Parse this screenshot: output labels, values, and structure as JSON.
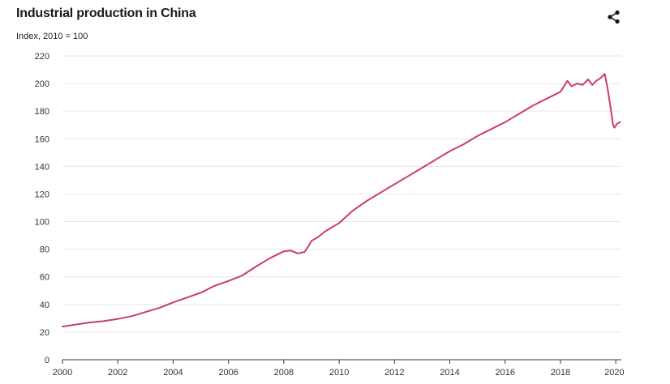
{
  "header": {
    "title": "Industrial production in China",
    "subtitle": "Index, 2010 = 100",
    "share_icon": "share-icon"
  },
  "colors": {
    "line": "#cc3d64",
    "grid": "#e6e6e6",
    "axis": "#333333"
  },
  "chart_data": {
    "type": "line",
    "title": "Industrial production in China",
    "subtitle": "Index, 2010 = 100",
    "xlabel": "",
    "ylabel": "",
    "xlim": [
      2000,
      2020.2
    ],
    "ylim": [
      0,
      220
    ],
    "grid": true,
    "x_ticks": [
      "2000",
      "2002",
      "2004",
      "2006",
      "2008",
      "2010",
      "2012",
      "2014",
      "2016",
      "2018",
      "2020"
    ],
    "y_ticks": [
      "0",
      "20",
      "40",
      "60",
      "80",
      "100",
      "120",
      "140",
      "160",
      "180",
      "200",
      "220"
    ],
    "series": [
      {
        "name": "",
        "x": [
          2000,
          2000.5,
          2001,
          2001.5,
          2002,
          2002.5,
          2003,
          2003.5,
          2004,
          2004.5,
          2005,
          2005.5,
          2006,
          2006.5,
          2007,
          2007.5,
          2008,
          2008.25,
          2008.5,
          2008.75,
          2008.9,
          2009,
          2009.25,
          2009.5,
          2010,
          2010.5,
          2011,
          2011.5,
          2012,
          2012.5,
          2013,
          2013.5,
          2014,
          2014.5,
          2015,
          2015.5,
          2016,
          2016.5,
          2017,
          2017.5,
          2018,
          2018.25,
          2018.4,
          2018.6,
          2018.8,
          2019,
          2019.15,
          2019.3,
          2019.45,
          2019.6,
          2019.7,
          2019.8,
          2019.9,
          2019.95,
          2020.05,
          2020.15
        ],
        "values": [
          24,
          25.5,
          27,
          28,
          29.5,
          31.5,
          34.5,
          37.5,
          41.5,
          45,
          48.5,
          53.5,
          57,
          61,
          67.5,
          73.5,
          78.5,
          79,
          77,
          78,
          82.5,
          86,
          89,
          93,
          99,
          108,
          115,
          121,
          127,
          133,
          139,
          145,
          151,
          156,
          162,
          167,
          172,
          178,
          184,
          189,
          194,
          202,
          198,
          200,
          199,
          203,
          199,
          202,
          204,
          207,
          197,
          184,
          170,
          168,
          171,
          172
        ]
      }
    ]
  }
}
